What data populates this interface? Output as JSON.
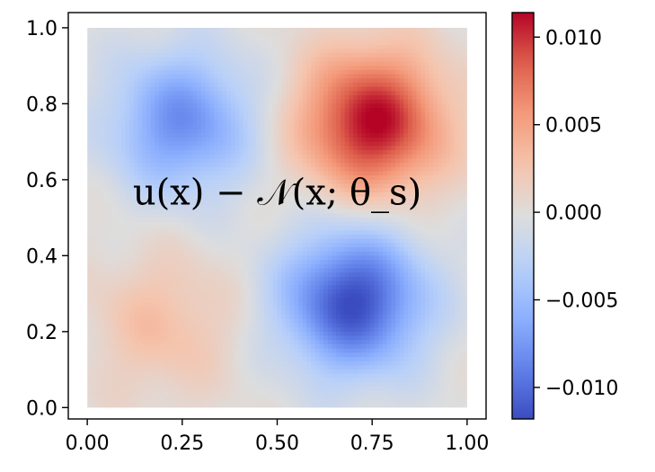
{
  "chart_data": {
    "type": "heatmap",
    "title": "",
    "xlabel": "",
    "ylabel": "",
    "xlim": [
      -0.05,
      1.05
    ],
    "ylim": [
      -0.03,
      1.04
    ],
    "data_extent": {
      "x": [
        0.0,
        1.0
      ],
      "y": [
        0.0,
        1.0
      ]
    },
    "x_ticks": [
      0.0,
      0.25,
      0.5,
      0.75,
      1.0
    ],
    "x_tick_labels": [
      "0.00",
      "0.25",
      "0.50",
      "0.75",
      "1.00"
    ],
    "y_ticks": [
      0.0,
      0.2,
      0.4,
      0.6,
      0.8,
      1.0
    ],
    "y_tick_labels": [
      "0.0",
      "0.2",
      "0.4",
      "0.6",
      "0.8",
      "1.0"
    ],
    "colormap": "coolwarm",
    "colorbar": {
      "range": [
        -0.0118,
        0.0114
      ],
      "ticks": [
        -0.01,
        -0.005,
        0.0,
        0.005,
        0.01
      ],
      "tick_labels": [
        "−0.010",
        "−0.005",
        "0.000",
        "0.005",
        "0.010"
      ]
    },
    "annotation": "u(x) − 𝒩(x; θ_s)",
    "features": [
      {
        "x": 0.25,
        "y": 0.75,
        "value": -0.008
      },
      {
        "x": 0.75,
        "y": 0.75,
        "value": 0.0114
      },
      {
        "x": 0.2,
        "y": 0.22,
        "value": 0.003
      },
      {
        "x": 0.7,
        "y": 0.28,
        "value": -0.0118
      }
    ],
    "grid": false
  }
}
